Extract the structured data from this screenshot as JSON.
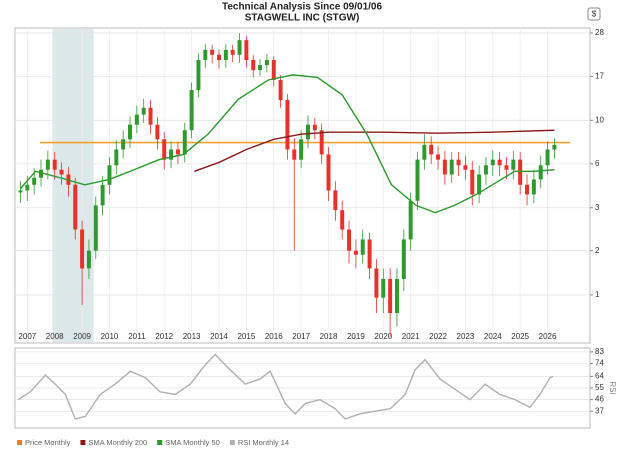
{
  "chart_data": [
    {
      "type": "candlestick",
      "title": "Technical Analysis Since 09/01/06",
      "subtitle": "STAGWELL INC (STGW)",
      "badge": "$",
      "name": "Price Monthly",
      "legend_color": "#f07d1a",
      "up_color": "#2e9a2e",
      "down_color": "#e8312a",
      "log_scale": true,
      "grid": true,
      "xlim": [
        2006.55,
        2027.55
      ],
      "xticks": [
        2007,
        2008,
        2009,
        2010,
        2011,
        2012,
        2013,
        2014,
        2015,
        2016,
        2017,
        2018,
        2019,
        2020,
        2021,
        2022,
        2023,
        2024,
        2025,
        2026
      ],
      "ylim": [
        0.7,
        29.7
      ],
      "yticks": [
        {
          "value": 28,
          "label": "28"
        },
        {
          "value": 16.7,
          "label": "17"
        },
        {
          "value": 9.9,
          "label": "10"
        },
        {
          "value": 5.9,
          "label": "6"
        },
        {
          "value": 3.5,
          "label": "3"
        },
        {
          "value": 2.1,
          "label": "2"
        },
        {
          "value": 1.24,
          "label": "1"
        }
      ],
      "shade": {
        "x": [
          2007.92,
          2009.42
        ],
        "color": "#dde8eb"
      },
      "hline": {
        "value": 7.6,
        "color": "#f4a02c"
      },
      "x": [
        2006.75,
        2007,
        2007.25,
        2007.5,
        2007.75,
        2008,
        2008.25,
        2008.5,
        2008.75,
        2009,
        2009.25,
        2009.5,
        2009.75,
        2010,
        2010.25,
        2010.5,
        2010.75,
        2011,
        2011.25,
        2011.5,
        2011.75,
        2012,
        2012.25,
        2012.5,
        2012.75,
        2013,
        2013.25,
        2013.5,
        2013.75,
        2014,
        2014.25,
        2014.5,
        2014.75,
        2015,
        2015.25,
        2015.5,
        2015.75,
        2016,
        2016.25,
        2016.5,
        2016.75,
        2017,
        2017.25,
        2017.5,
        2017.75,
        2018,
        2018.25,
        2018.5,
        2018.75,
        2019,
        2019.25,
        2019.5,
        2019.75,
        2020,
        2020.25,
        2020.5,
        2020.75,
        2021,
        2021.25,
        2021.5,
        2021.75,
        2022,
        2022.25,
        2022.5,
        2022.75,
        2023,
        2023.25,
        2023.5,
        2023.75,
        2024,
        2024.25,
        2024.5,
        2024.75,
        2025,
        2025.25,
        2025.5,
        2025.75,
        2026,
        2026.25
      ],
      "open": [
        4.2,
        4.3,
        4.6,
        5.0,
        5.5,
        6.2,
        5.5,
        5.2,
        4.6,
        2.7,
        1.7,
        2.1,
        3.6,
        4.6,
        5.8,
        7.0,
        7.9,
        9.4,
        10.6,
        11.5,
        9.4,
        7.9,
        6.2,
        7.0,
        6.6,
        8.8,
        14.2,
        20.3,
        22.9,
        21.6,
        20.3,
        22.9,
        21.6,
        25.7,
        20.3,
        18.0,
        19.1,
        20.3,
        16.0,
        12.6,
        7.0,
        6.2,
        7.9,
        9.4,
        8.8,
        6.6,
        4.3,
        3.4,
        2.7,
        2.1,
        2.0,
        2.4,
        1.7,
        1.2,
        1.5,
        1.0,
        1.5,
        2.4,
        3.8,
        6.2,
        7.4,
        6.6,
        6.2,
        5.2,
        6.2,
        5.8,
        5.5,
        4.1,
        5.2,
        5.8,
        6.2,
        5.8,
        5.5,
        6.2,
        4.6,
        4.1,
        4.9,
        5.8,
        7.0
      ],
      "high": [
        4.8,
        5.1,
        5.6,
        6.2,
        6.9,
        6.8,
        6.0,
        5.7,
        5.0,
        3.0,
        2.4,
        4.0,
        5.1,
        6.4,
        7.8,
        8.8,
        10.4,
        11.8,
        12.8,
        12.6,
        10.3,
        8.6,
        7.7,
        7.6,
        9.6,
        15.5,
        22.0,
        24.5,
        24.3,
        23.0,
        24.5,
        24.3,
        28.0,
        27.0,
        21.5,
        20.5,
        21.8,
        21.2,
        17.0,
        13.5,
        8.0,
        8.8,
        10.5,
        10.2,
        9.5,
        7.2,
        4.8,
        3.8,
        3.0,
        2.4,
        2.7,
        2.6,
        1.9,
        1.7,
        1.7,
        1.7,
        2.7,
        4.2,
        6.8,
        8.4,
        8.2,
        7.3,
        6.9,
        6.8,
        6.8,
        6.5,
        6.1,
        5.8,
        6.4,
        6.9,
        6.8,
        6.4,
        6.9,
        6.8,
        5.2,
        5.5,
        6.5,
        7.7,
        8.0
      ],
      "low": [
        3.7,
        3.8,
        4.1,
        4.5,
        4.9,
        4.9,
        4.6,
        4.0,
        2.4,
        1.1,
        1.5,
        1.9,
        3.2,
        4.1,
        5.2,
        6.3,
        7.1,
        8.5,
        9.6,
        8.4,
        7.0,
        5.5,
        5.6,
        5.9,
        6.0,
        8.0,
        13.0,
        18.5,
        19.5,
        18.3,
        18.5,
        19.8,
        19.6,
        18.5,
        16.5,
        16.8,
        17.5,
        14.8,
        11.5,
        6.2,
        2.1,
        5.6,
        7.1,
        7.9,
        5.9,
        3.8,
        3.0,
        2.4,
        1.8,
        1.7,
        1.8,
        1.5,
        1.0,
        1.0,
        0.75,
        0.85,
        1.3,
        2.1,
        3.4,
        5.5,
        5.9,
        5.5,
        4.6,
        4.7,
        5.1,
        4.9,
        3.6,
        3.7,
        4.6,
        5.1,
        5.1,
        4.9,
        4.9,
        4.1,
        3.6,
        3.7,
        4.4,
        5.2,
        6.3
      ],
      "close": [
        4.3,
        4.6,
        5.0,
        5.5,
        6.2,
        5.5,
        5.2,
        4.6,
        2.7,
        1.7,
        2.1,
        3.6,
        4.6,
        5.8,
        7.0,
        7.9,
        9.4,
        10.6,
        11.5,
        9.4,
        7.9,
        6.2,
        7.0,
        6.6,
        8.8,
        14.2,
        20.3,
        22.9,
        21.6,
        20.3,
        22.9,
        21.6,
        25.7,
        20.3,
        18.0,
        19.1,
        20.3,
        16.0,
        12.6,
        7.0,
        6.2,
        7.9,
        9.4,
        8.8,
        6.6,
        4.3,
        3.4,
        2.7,
        2.1,
        2.0,
        2.4,
        1.7,
        1.2,
        1.5,
        1.0,
        1.5,
        2.4,
        3.8,
        6.2,
        7.4,
        6.6,
        6.2,
        5.2,
        6.2,
        5.8,
        5.5,
        4.1,
        5.2,
        5.8,
        6.2,
        5.8,
        5.5,
        6.2,
        4.6,
        4.1,
        4.9,
        5.8,
        7.0,
        7.4
      ],
      "series": [
        {
          "name": "SMA Monthly 200",
          "color": "#8b1a1a",
          "x": [
            2013.1,
            2014.0,
            2015.0,
            2016.0,
            2017.0,
            2018.0,
            2020.0,
            2022.0,
            2024.0,
            2026.25
          ],
          "values": [
            5.4,
            6.0,
            7.0,
            7.9,
            8.4,
            8.6,
            8.6,
            8.5,
            8.6,
            8.8
          ]
        },
        {
          "name": "SMA Monthly 50",
          "color": "#2a9a2a",
          "x": [
            2006.75,
            2007.3,
            2008.2,
            2009.1,
            2010.0,
            2010.9,
            2011.8,
            2012.7,
            2013.6,
            2014.7,
            2015.8,
            2016.7,
            2017.6,
            2018.5,
            2019.4,
            2020.3,
            2021.2,
            2021.9,
            2022.6,
            2023.4,
            2024.1,
            2024.8,
            2025.5,
            2026.25
          ],
          "values": [
            4.4,
            5.4,
            5.0,
            4.6,
            4.9,
            5.5,
            6.2,
            6.6,
            8.4,
            12.7,
            16.0,
            17.0,
            16.5,
            13.4,
            8.4,
            4.6,
            3.6,
            3.3,
            3.6,
            4.1,
            4.7,
            5.4,
            5.4,
            5.5
          ]
        }
      ]
    },
    {
      "type": "line",
      "ylabel": "RSI",
      "grid": true,
      "xlim": [
        2006.55,
        2027.55
      ],
      "ylim": [
        24,
        86
      ],
      "yticks": [
        83,
        74,
        64,
        55,
        46,
        37
      ],
      "series": [
        {
          "name": "RSI Monthly 14",
          "color": "#b0b0b0",
          "x": [
            2006.67,
            2007.11,
            2007.66,
            2008.02,
            2008.39,
            2008.75,
            2009.12,
            2009.66,
            2010.21,
            2010.76,
            2011.31,
            2011.85,
            2012.4,
            2012.95,
            2013.5,
            2013.86,
            2014.41,
            2014.96,
            2015.5,
            2015.87,
            2016.42,
            2016.78,
            2017.15,
            2017.69,
            2018.24,
            2018.61,
            2019.15,
            2019.7,
            2020.26,
            2020.8,
            2021.16,
            2021.53,
            2022.07,
            2022.62,
            2023.17,
            2023.72,
            2024.26,
            2024.81,
            2025.36,
            2025.72,
            2026.09,
            2026.2
          ],
          "values": [
            46,
            52,
            65,
            58,
            50,
            31,
            33,
            50,
            58,
            68,
            63,
            52,
            50,
            58,
            73,
            81,
            69,
            58,
            62,
            68,
            43,
            35,
            43,
            46,
            39,
            31,
            35,
            37,
            39,
            50,
            69,
            77,
            62,
            54,
            46,
            58,
            50,
            46,
            40,
            50,
            63,
            64
          ]
        }
      ]
    }
  ]
}
